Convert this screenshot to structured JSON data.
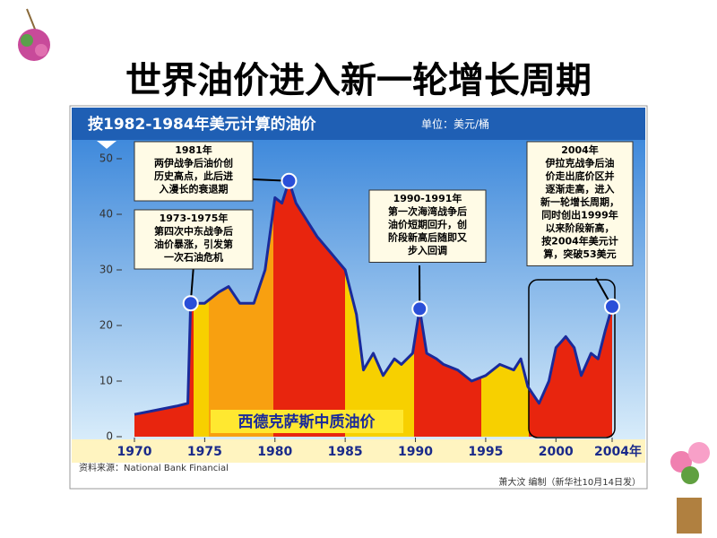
{
  "chart_data": {
    "type": "line",
    "title": "世界油价进入新一轮增长周期",
    "subtitle": "按1982-1984年美元计算的油价",
    "unit": "单位：美元/桶",
    "source": "资料来源：National Bank Financial",
    "credit": "萧大汶 编制（新华社10月14日发）",
    "x": [
      1970,
      1971,
      1972,
      1973,
      1973.8,
      1974,
      1975,
      1976,
      1976.7,
      1977.5,
      1978.5,
      1979.3,
      1980,
      1980.5,
      1981,
      1981.5,
      1982,
      1983,
      1984,
      1985,
      1985.8,
      1986.3,
      1987,
      1987.7,
      1988.5,
      1989,
      1989.8,
      1990.3,
      1990.8,
      1991.5,
      1992,
      1993,
      1994,
      1995,
      1996,
      1997,
      1997.5,
      1998,
      1998.8,
      1999.5,
      2000,
      2000.7,
      2001.3,
      2001.8,
      2002.5,
      2003,
      2003.5,
      2004
    ],
    "series": [
      {
        "name": "西德克萨斯中质油价",
        "color": "#1a2a9a",
        "values": [
          4,
          4.5,
          5,
          5.5,
          6,
          24,
          24,
          26,
          27,
          24,
          24,
          30,
          43,
          42,
          46,
          42,
          40,
          36,
          33,
          30,
          22,
          12,
          15,
          11,
          14,
          13,
          15,
          23,
          15,
          14,
          13,
          12,
          10,
          11,
          13,
          12,
          14,
          9,
          6,
          10,
          16,
          18,
          16,
          11,
          15,
          14,
          19,
          23.4
        ]
      }
    ],
    "xlim": [
      1970,
      2004
    ],
    "xticks": [
      1970,
      1975,
      1980,
      1985,
      1990,
      1995,
      2000,
      {
        "value": 2004,
        "label": "2004年"
      }
    ],
    "ylim": [
      0,
      50
    ],
    "yticks": [
      0,
      10,
      20,
      30,
      40,
      50
    ],
    "annotations": [
      {
        "heading": "1981年",
        "lines": [
          "两伊战争后油价创",
          "历史高点，此后进",
          "入漫长的衰退期"
        ]
      },
      {
        "heading": "1973-1975年",
        "lines": [
          "第四次中东战争后",
          "油价暴涨，引发第",
          "一次石油危机"
        ]
      },
      {
        "heading": "1990-1991年",
        "lines": [
          "第一次海湾战争后",
          "油价短期回升，创",
          "阶段新高后随即又",
          "步入回调"
        ]
      },
      {
        "heading": "2004年",
        "lines": [
          "伊拉克战争后油",
          "价走出底价区并",
          "逐渐走高，进入",
          "新一轮增长周期，",
          "同时创出1999年",
          "以来阶段新高，",
          "按2004年美元计",
          "算，突破53美元"
        ]
      }
    ]
  }
}
